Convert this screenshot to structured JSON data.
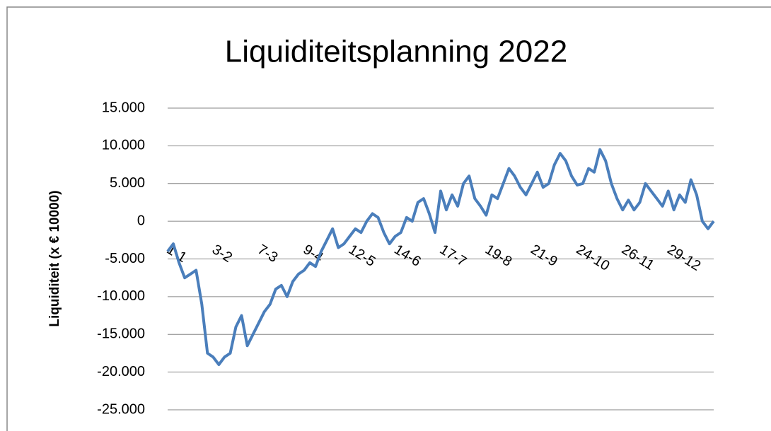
{
  "chart_data": {
    "type": "line",
    "title": "Liquiditeitsplanning 2022",
    "y_label": "Liquiditeit (x  € 10000)",
    "categories": [
      "1-1",
      null,
      null,
      null,
      null,
      null,
      null,
      null,
      "3-2",
      null,
      null,
      null,
      null,
      null,
      null,
      null,
      "7-3",
      null,
      null,
      null,
      null,
      null,
      null,
      null,
      "9-4",
      null,
      null,
      null,
      null,
      null,
      null,
      null,
      "12-5",
      null,
      null,
      null,
      null,
      null,
      null,
      null,
      "14-6",
      null,
      null,
      null,
      null,
      null,
      null,
      null,
      "17-7",
      null,
      null,
      null,
      null,
      null,
      null,
      null,
      "19-8",
      null,
      null,
      null,
      null,
      null,
      null,
      null,
      "21-9",
      null,
      null,
      null,
      null,
      null,
      null,
      null,
      "24-10",
      null,
      null,
      null,
      null,
      null,
      null,
      null,
      "26-11",
      null,
      null,
      null,
      null,
      null,
      null,
      null,
      "29-12",
      null,
      null,
      null,
      null,
      null,
      null,
      null,
      null
    ],
    "series": [
      {
        "name": "Liquiditeit",
        "color": "#4a7ebb",
        "values": [
          -4000,
          -3000,
          -5500,
          -7500,
          -7000,
          -6500,
          -11000,
          -17500,
          -18000,
          -19000,
          -18000,
          -17500,
          -14000,
          -12500,
          -16500,
          -15000,
          -13500,
          -12000,
          -11000,
          -9000,
          -8500,
          -10000,
          -8000,
          -7000,
          -6500,
          -5500,
          -6000,
          -4000,
          -2500,
          -1000,
          -3500,
          -3000,
          -2000,
          -1000,
          -1500,
          0,
          1000,
          500,
          -1500,
          -3000,
          -2000,
          -1500,
          500,
          0,
          2500,
          3000,
          1000,
          -1500,
          4000,
          1500,
          3500,
          2000,
          5000,
          6000,
          3000,
          2000,
          800,
          3500,
          3000,
          5000,
          7000,
          6000,
          4500,
          3500,
          5000,
          6500,
          4500,
          5000,
          7500,
          9000,
          8000,
          6000,
          4800,
          5000,
          7000,
          6500,
          9500,
          8000,
          5000,
          3000,
          1500,
          2800,
          1500,
          2500,
          5000,
          4000,
          3000,
          2000,
          4000,
          1500,
          3500,
          2500,
          5500,
          3500,
          0,
          -1000,
          0
        ]
      }
    ],
    "ylim": [
      -25000,
      15000
    ],
    "yticks": [
      {
        "value": -25000,
        "label": "-25.000"
      },
      {
        "value": -20000,
        "label": "-20.000"
      },
      {
        "value": -15000,
        "label": "-15.000"
      },
      {
        "value": -10000,
        "label": "-10.000"
      },
      {
        "value": -5000,
        "label": "-5.000"
      },
      0,
      {
        "value": 5000,
        "label": "5.000"
      },
      {
        "value": 10000,
        "label": "10.000"
      },
      {
        "value": 15000,
        "label": "15.000"
      }
    ],
    "grid": true
  }
}
